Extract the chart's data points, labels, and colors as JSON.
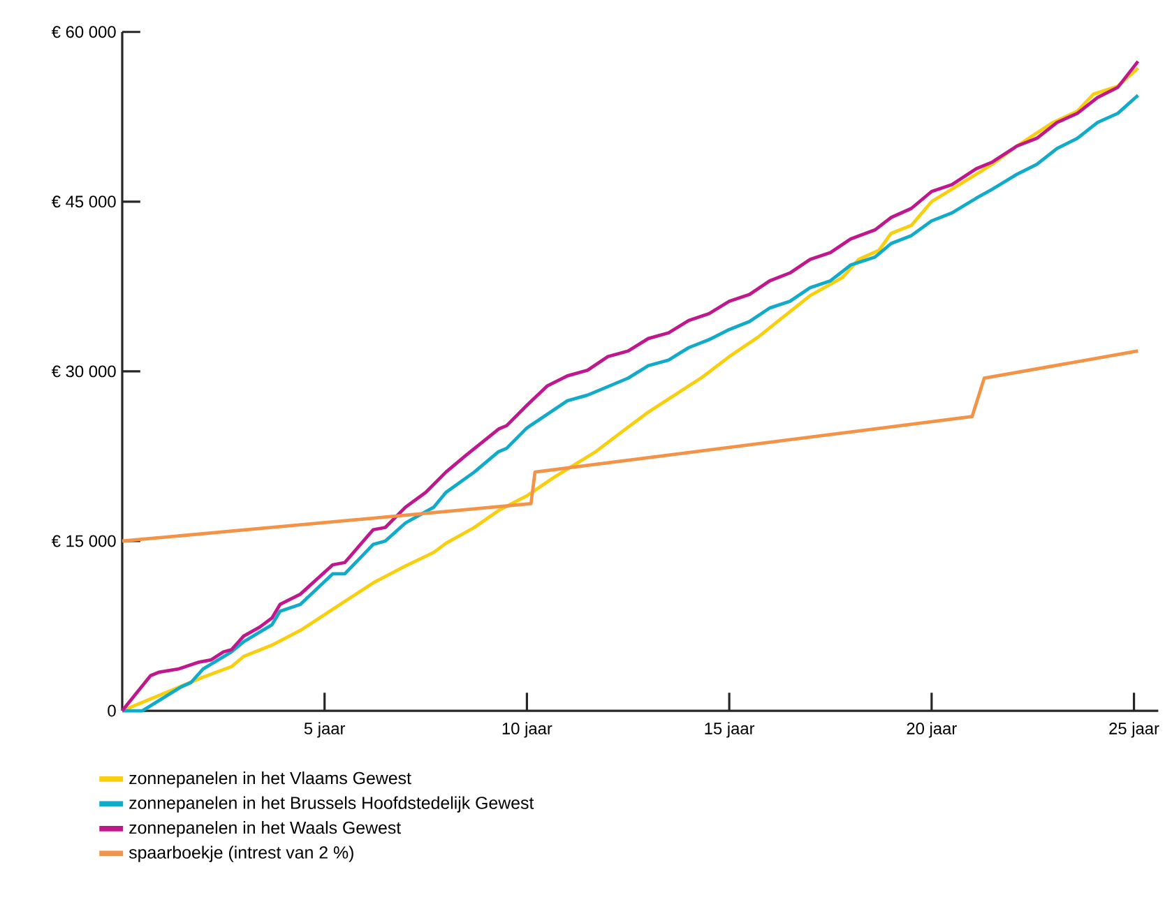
{
  "chart_data": {
    "type": "line",
    "xlim": [
      0,
      25.6
    ],
    "ylim": [
      0,
      60000
    ],
    "xticks": [
      {
        "value": 5,
        "label": "5 jaar"
      },
      {
        "value": 10,
        "label": "10 jaar"
      },
      {
        "value": 15,
        "label": "15 jaar"
      },
      {
        "value": 20,
        "label": "20 jaar"
      },
      {
        "value": 25,
        "label": "25 jaar"
      }
    ],
    "yticks": [
      {
        "value": 0,
        "label": "0"
      },
      {
        "value": 15000,
        "label": "€ 15 000"
      },
      {
        "value": 30000,
        "label": "€ 30 000"
      },
      {
        "value": 45000,
        "label": "€ 45 000"
      },
      {
        "value": 60000,
        "label": "€ 60 000"
      }
    ],
    "grid": false,
    "legend": "bottom",
    "marker": "none",
    "line_style": "solid",
    "series": [
      {
        "name": "zonnepanelen in het Vlaams Gewest",
        "color": "#f7cf0f",
        "x": [
          0,
          1.95,
          2.7,
          3.0,
          3.7,
          4.45,
          5.3,
          6.2,
          7.0,
          7.7,
          8.0,
          8.7,
          9.3,
          10.0,
          10.7,
          11.7,
          12.4,
          13.0,
          14.3,
          15.0,
          15.7,
          16.3,
          17.0,
          17.8,
          18.2,
          18.7,
          19.0,
          19.5,
          20.0,
          21.0,
          21.5,
          22.1,
          23.0,
          23.6,
          24.0,
          24.6,
          25.1
        ],
        "values": [
          0,
          2900,
          3900,
          4800,
          5800,
          7200,
          9200,
          11300,
          12800,
          14000,
          14800,
          16200,
          17700,
          19000,
          20700,
          22900,
          24800,
          26400,
          29400,
          31300,
          33000,
          34700,
          36700,
          38300,
          39900,
          40700,
          42200,
          42900,
          45000,
          47200,
          48300,
          49900,
          52000,
          53000,
          54500,
          55200,
          56800
        ]
      },
      {
        "name": "zonnepanelen in het Brussels Hoofdstedelijk Gewest",
        "color": "#10abc9",
        "x": [
          0,
          0.5,
          1.45,
          1.7,
          2.0,
          2.7,
          3.0,
          3.7,
          3.9,
          4.4,
          5.2,
          5.5,
          6.2,
          6.5,
          7.0,
          7.7,
          8.0,
          8.7,
          9.3,
          9.5,
          10.0,
          11.0,
          11.5,
          12.1,
          12.5,
          13.0,
          13.5,
          14.0,
          14.5,
          15.0,
          15.5,
          16.0,
          16.5,
          17.0,
          17.5,
          18.0,
          18.6,
          19.0,
          19.5,
          20.0,
          20.5,
          21.1,
          21.5,
          22.1,
          22.6,
          23.1,
          23.6,
          24.1,
          24.6,
          25.1
        ],
        "values": [
          0,
          0,
          2100,
          2500,
          3700,
          5200,
          6100,
          7600,
          8800,
          9400,
          12100,
          12100,
          14700,
          15000,
          16600,
          18000,
          19300,
          21100,
          22900,
          23200,
          25000,
          27400,
          27900,
          28800,
          29400,
          30500,
          31000,
          32100,
          32800,
          33700,
          34400,
          35600,
          36200,
          37400,
          38000,
          39400,
          40100,
          41300,
          42000,
          43300,
          44000,
          45300,
          46100,
          47400,
          48300,
          49700,
          50600,
          52000,
          52800,
          54400
        ]
      },
      {
        "name": "zonnepanelen in het Waals Gewest",
        "color": "#c0188c",
        "x": [
          0,
          0.7,
          0.9,
          1.4,
          1.9,
          2.2,
          2.5,
          2.7,
          3.0,
          3.4,
          3.7,
          3.9,
          4.4,
          5.2,
          5.5,
          6.2,
          6.5,
          7.0,
          7.5,
          8.0,
          8.5,
          9.3,
          9.5,
          10.0,
          10.5,
          11.0,
          11.5,
          12.0,
          12.5,
          13.0,
          13.5,
          14.0,
          14.5,
          15.0,
          15.5,
          16.0,
          16.5,
          17.0,
          17.5,
          18.0,
          18.6,
          19.0,
          19.5,
          20.0,
          20.5,
          21.1,
          21.5,
          22.1,
          22.6,
          23.1,
          23.6,
          24.1,
          24.6,
          25.1
        ],
        "values": [
          0,
          3100,
          3400,
          3700,
          4300,
          4500,
          5200,
          5400,
          6600,
          7400,
          8200,
          9400,
          10300,
          12900,
          13100,
          16000,
          16200,
          18000,
          19300,
          21100,
          22600,
          24900,
          25200,
          27000,
          28700,
          29600,
          30100,
          31300,
          31800,
          32900,
          33400,
          34500,
          35100,
          36200,
          36800,
          38000,
          38700,
          39900,
          40500,
          41700,
          42500,
          43600,
          44400,
          45900,
          46500,
          47900,
          48500,
          49900,
          50600,
          52000,
          52800,
          54200,
          55100,
          57400
        ]
      },
      {
        "name": "spaarboekje (intrest van 2 %)",
        "color": "#f39347",
        "x": [
          0,
          10.1,
          10.2,
          21.0,
          21.3,
          25.1
        ],
        "values": [
          15000,
          18300,
          21100,
          26000,
          29400,
          31800
        ]
      }
    ]
  }
}
